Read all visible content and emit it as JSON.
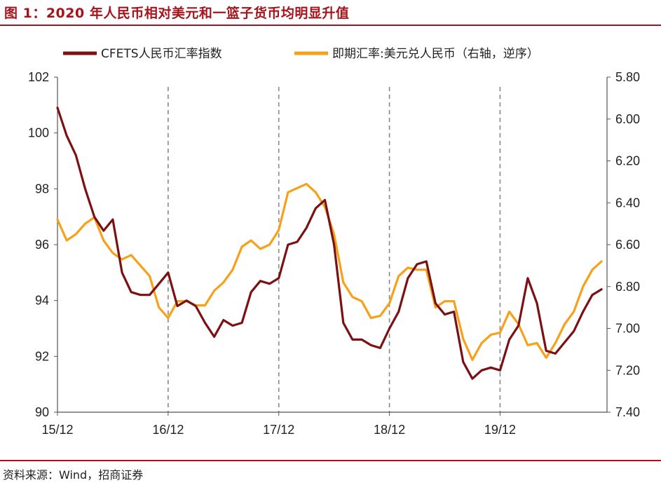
{
  "figure": {
    "title": "图 1：2020 年人民币相对美元和一篮子货币均明显升值",
    "source": "资料来源：Wind，招商证券"
  },
  "colors": {
    "accent": "#a5141c",
    "cfets": "#7b1113",
    "usdcny": "#f7a11a",
    "grid_dash": "#888888"
  },
  "chart_data": {
    "type": "line",
    "title": "",
    "x_ticks": [
      "15/12",
      "16/12",
      "17/12",
      "18/12",
      "19/12"
    ],
    "x_range": [
      "2015-12",
      "2020-11"
    ],
    "y_left": {
      "label": "",
      "ylim": [
        90,
        102
      ],
      "ticks": [
        "90",
        "92",
        "94",
        "96",
        "98",
        "100",
        "102"
      ]
    },
    "y_right": {
      "label": "",
      "ylim": [
        5.8,
        7.4
      ],
      "inverted": true,
      "ticks": [
        "5.80",
        "6.00",
        "6.20",
        "6.40",
        "6.60",
        "6.80",
        "7.00",
        "7.20",
        "7.40"
      ]
    },
    "vertical_dashed_lines_at": [
      "16/12",
      "17/12",
      "18/12",
      "19/12"
    ],
    "legend_position": "top",
    "series": [
      {
        "name": "CFETS人民币汇率指数",
        "axis": "left",
        "color": "#7b1113",
        "x": [
          "2015-12",
          "2016-01",
          "2016-02",
          "2016-03",
          "2016-04",
          "2016-05",
          "2016-06",
          "2016-07",
          "2016-08",
          "2016-09",
          "2016-10",
          "2016-11",
          "2016-12",
          "2017-01",
          "2017-02",
          "2017-03",
          "2017-04",
          "2017-05",
          "2017-06",
          "2017-07",
          "2017-08",
          "2017-09",
          "2017-10",
          "2017-11",
          "2017-12",
          "2018-01",
          "2018-02",
          "2018-03",
          "2018-04",
          "2018-05",
          "2018-06",
          "2018-07",
          "2018-08",
          "2018-09",
          "2018-10",
          "2018-11",
          "2018-12",
          "2019-01",
          "2019-02",
          "2019-03",
          "2019-04",
          "2019-05",
          "2019-06",
          "2019-07",
          "2019-08",
          "2019-09",
          "2019-10",
          "2019-11",
          "2019-12",
          "2020-01",
          "2020-02",
          "2020-03",
          "2020-04",
          "2020-05",
          "2020-06",
          "2020-07",
          "2020-08",
          "2020-09",
          "2020-10",
          "2020-11"
        ],
        "values": [
          100.9,
          99.9,
          99.2,
          98.0,
          97.0,
          96.5,
          96.9,
          95.0,
          94.3,
          94.2,
          94.2,
          94.6,
          95.0,
          93.8,
          94.0,
          93.8,
          93.2,
          92.7,
          93.3,
          93.1,
          93.2,
          94.3,
          94.7,
          94.6,
          94.8,
          96.0,
          96.1,
          96.6,
          97.3,
          97.6,
          96.0,
          93.2,
          92.6,
          92.6,
          92.4,
          92.3,
          93.0,
          93.6,
          94.8,
          95.3,
          95.4,
          93.9,
          93.5,
          93.6,
          91.8,
          91.2,
          91.5,
          91.6,
          91.5,
          92.6,
          93.1,
          94.8,
          93.9,
          92.2,
          92.1,
          92.5,
          92.9,
          93.6,
          94.2,
          94.4
        ]
      },
      {
        "name": "即期汇率:美元兑人民币（右轴，逆序）",
        "axis": "right",
        "color": "#f7a11a",
        "x": [
          "2015-12",
          "2016-01",
          "2016-02",
          "2016-03",
          "2016-04",
          "2016-05",
          "2016-06",
          "2016-07",
          "2016-08",
          "2016-09",
          "2016-10",
          "2016-11",
          "2016-12",
          "2017-01",
          "2017-02",
          "2017-03",
          "2017-04",
          "2017-05",
          "2017-06",
          "2017-07",
          "2017-08",
          "2017-09",
          "2017-10",
          "2017-11",
          "2017-12",
          "2018-01",
          "2018-02",
          "2018-03",
          "2018-04",
          "2018-05",
          "2018-06",
          "2018-07",
          "2018-08",
          "2018-09",
          "2018-10",
          "2018-11",
          "2018-12",
          "2019-01",
          "2019-02",
          "2019-03",
          "2019-04",
          "2019-05",
          "2019-06",
          "2019-07",
          "2019-08",
          "2019-09",
          "2019-10",
          "2019-11",
          "2019-12",
          "2020-01",
          "2020-02",
          "2020-03",
          "2020-04",
          "2020-05",
          "2020-06",
          "2020-07",
          "2020-08",
          "2020-09",
          "2020-10",
          "2020-11"
        ],
        "values": [
          6.48,
          6.58,
          6.55,
          6.5,
          6.47,
          6.58,
          6.64,
          6.67,
          6.65,
          6.7,
          6.75,
          6.9,
          6.95,
          6.87,
          6.87,
          6.89,
          6.89,
          6.82,
          6.78,
          6.72,
          6.61,
          6.58,
          6.62,
          6.6,
          6.53,
          6.35,
          6.33,
          6.31,
          6.35,
          6.42,
          6.55,
          6.78,
          6.85,
          6.87,
          6.95,
          6.94,
          6.88,
          6.75,
          6.71,
          6.72,
          6.72,
          6.9,
          6.87,
          6.87,
          7.05,
          7.15,
          7.07,
          7.03,
          7.02,
          6.92,
          6.98,
          7.08,
          7.07,
          7.14,
          7.07,
          6.98,
          6.92,
          6.8,
          6.72,
          6.68
        ]
      }
    ]
  }
}
